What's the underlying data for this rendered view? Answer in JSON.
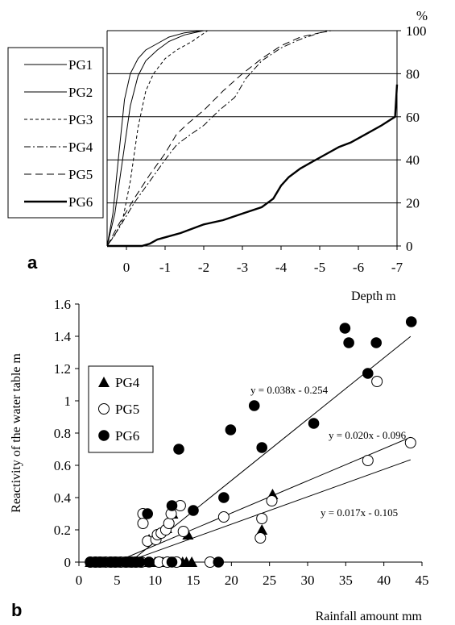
{
  "chart_data": [
    {
      "panel": "a",
      "type": "line",
      "title": "",
      "xlabel": "Depth m",
      "ylabel": "%",
      "xlim": [
        0.5,
        -7
      ],
      "ylim": [
        0,
        100
      ],
      "x_ticks": [
        "0",
        "-1",
        "-2",
        "-3",
        "-4",
        "-5",
        "-6",
        "-7"
      ],
      "y_ticks": [
        "0",
        "20",
        "40",
        "60",
        "80",
        "100"
      ],
      "grid": "horizontal",
      "legend": "left",
      "series": [
        {
          "name": "PG1",
          "line": "solid-thin",
          "x": [
            0.5,
            0.35,
            0.2,
            0.05,
            -0.1,
            -0.3,
            -0.5,
            -0.8,
            -1.1,
            -1.5,
            -2,
            -3,
            -4,
            -5,
            -7
          ],
          "y": [
            0,
            15,
            42,
            68,
            80,
            87,
            91,
            94,
            97,
            99,
            100,
            100,
            100,
            100,
            100
          ]
        },
        {
          "name": "PG2",
          "line": "solid-thin",
          "x": [
            0.5,
            0.3,
            0.1,
            -0.1,
            -0.3,
            -0.5,
            -0.8,
            -1.1,
            -1.5,
            -2,
            -3,
            -4,
            -5,
            -7
          ],
          "y": [
            0,
            15,
            40,
            65,
            79,
            86,
            91,
            95,
            98,
            100,
            100,
            100,
            100,
            100
          ]
        },
        {
          "name": "PG3",
          "line": "dashed-short",
          "x": [
            0.5,
            0.3,
            0.1,
            -0.1,
            -0.3,
            -0.5,
            -0.7,
            -1,
            -1.3,
            -1.7,
            -2.1,
            -3,
            -4,
            -5,
            -7
          ],
          "y": [
            0,
            5,
            12,
            30,
            55,
            72,
            80,
            87,
            91,
            95,
            100,
            100,
            100,
            100,
            100
          ]
        },
        {
          "name": "PG4",
          "line": "dash-dot",
          "x": [
            0.5,
            0.2,
            -0.2,
            -0.6,
            -1,
            -1.3,
            -1.6,
            -2,
            -2.4,
            -2.8,
            -3.1,
            -3.5,
            -4,
            -4.5,
            -5,
            -5.3,
            -7
          ],
          "y": [
            0,
            8,
            20,
            30,
            40,
            47,
            51,
            56,
            63,
            69,
            78,
            86,
            92,
            96,
            99,
            100,
            100
          ]
        },
        {
          "name": "PG5",
          "line": "dashed-long",
          "x": [
            0.5,
            0.2,
            -0.2,
            -0.6,
            -1,
            -1.3,
            -1.6,
            -2,
            -2.5,
            -3,
            -3.5,
            -4,
            -4.5,
            -5,
            -5.2,
            -7
          ],
          "y": [
            0,
            10,
            22,
            33,
            43,
            52,
            57,
            63,
            72,
            80,
            87,
            93,
            97,
            99,
            100,
            100
          ]
        },
        {
          "name": "PG6",
          "line": "solid-thick",
          "x": [
            0.5,
            -0.2,
            -0.4,
            -0.6,
            -0.8,
            -1,
            -1.4,
            -2,
            -2.5,
            -3,
            -3.5,
            -3.8,
            -4,
            -4.2,
            -4.5,
            -5,
            -5.5,
            -5.8,
            -6.2,
            -6.6,
            -6.95,
            -7
          ],
          "y": [
            0,
            0,
            0,
            1,
            3,
            4,
            6,
            10,
            12,
            15,
            18,
            22,
            28,
            32,
            36,
            41,
            46,
            48,
            52,
            56,
            60,
            75
          ]
        }
      ]
    },
    {
      "panel": "b",
      "type": "scatter",
      "title": "",
      "xlabel": "Rainfall amount mm",
      "ylabel": "Reactivity of the water table  m",
      "xlim": [
        0,
        45
      ],
      "ylim": [
        0,
        1.6
      ],
      "x_ticks": [
        "0",
        "5",
        "10",
        "15",
        "20",
        "25",
        "30",
        "35",
        "40",
        "45"
      ],
      "y_ticks": [
        "0",
        "0.2",
        "0.4",
        "0.6",
        "0.8",
        "1",
        "1.2",
        "1.4",
        "1.6"
      ],
      "grid": false,
      "legend": "top-left",
      "series": [
        {
          "name": "PG4",
          "marker": "triangle",
          "points": [
            [
              1.5,
              0
            ],
            [
              2,
              0
            ],
            [
              2.6,
              0
            ],
            [
              3,
              0
            ],
            [
              3.4,
              0
            ],
            [
              4,
              0
            ],
            [
              4.5,
              0
            ],
            [
              5,
              0
            ],
            [
              5.4,
              0
            ],
            [
              5.9,
              0
            ],
            [
              6.2,
              0
            ],
            [
              6.8,
              0
            ],
            [
              7.2,
              0
            ],
            [
              7.8,
              0
            ],
            [
              8.3,
              0
            ],
            [
              9,
              0
            ],
            [
              9.4,
              0
            ],
            [
              10,
              0
            ],
            [
              10.5,
              0
            ],
            [
              11,
              0
            ],
            [
              11.5,
              0
            ],
            [
              12,
              0
            ],
            [
              12.4,
              0
            ],
            [
              13,
              0
            ],
            [
              13.6,
              0
            ],
            [
              14.1,
              0
            ],
            [
              14.8,
              0
            ],
            [
              9.2,
              0.14
            ],
            [
              11.5,
              0.21
            ],
            [
              12.3,
              0.3
            ],
            [
              14.3,
              0.17
            ],
            [
              24,
              0.2
            ],
            [
              25.4,
              0.42
            ]
          ]
        },
        {
          "name": "PG5",
          "marker": "circle-open",
          "points": [
            [
              1.5,
              0
            ],
            [
              2.2,
              0
            ],
            [
              2.8,
              0
            ],
            [
              3.5,
              0
            ],
            [
              4.2,
              0
            ],
            [
              4.8,
              0
            ],
            [
              5.5,
              0
            ],
            [
              6.2,
              0
            ],
            [
              6.9,
              0
            ],
            [
              7.5,
              0
            ],
            [
              8.2,
              0
            ],
            [
              10.5,
              0
            ],
            [
              11.6,
              0
            ],
            [
              12.8,
              0
            ],
            [
              17.2,
              0
            ],
            [
              8.4,
              0.3
            ],
            [
              8.4,
              0.24
            ],
            [
              9,
              0.13
            ],
            [
              10.1,
              0.14
            ],
            [
              10.3,
              0.17
            ],
            [
              10.8,
              0.18
            ],
            [
              11.4,
              0.2
            ],
            [
              11.8,
              0.24
            ],
            [
              12.1,
              0.3
            ],
            [
              13.3,
              0.35
            ],
            [
              13.7,
              0.19
            ],
            [
              19,
              0.28
            ],
            [
              23.8,
              0.15
            ],
            [
              24,
              0.27
            ],
            [
              25.3,
              0.38
            ],
            [
              37.9,
              0.63
            ],
            [
              39.1,
              1.12
            ],
            [
              43.5,
              0.74
            ]
          ]
        },
        {
          "name": "PG6",
          "marker": "circle-filled",
          "points": [
            [
              1.5,
              0
            ],
            [
              2,
              0
            ],
            [
              2.6,
              0
            ],
            [
              3.2,
              0
            ],
            [
              4,
              0
            ],
            [
              4.6,
              0
            ],
            [
              5.2,
              0
            ],
            [
              6,
              0
            ],
            [
              6.6,
              0
            ],
            [
              7.3,
              0
            ],
            [
              8,
              0
            ],
            [
              9.2,
              0
            ],
            [
              12.2,
              0
            ],
            [
              18.3,
              0
            ],
            [
              9,
              0.3
            ],
            [
              12.2,
              0.35
            ],
            [
              13.1,
              0.7
            ],
            [
              15,
              0.32
            ],
            [
              19,
              0.4
            ],
            [
              19.9,
              0.82
            ],
            [
              23,
              0.97
            ],
            [
              24,
              0.71
            ],
            [
              30.8,
              0.86
            ],
            [
              34.9,
              1.45
            ],
            [
              35.4,
              1.36
            ],
            [
              37.9,
              1.17
            ],
            [
              39,
              1.36
            ],
            [
              43.6,
              1.49
            ]
          ]
        }
      ],
      "trendlines": [
        {
          "equation": "y = 0.038x - 0.254",
          "slope": 0.038,
          "intercept": -0.254,
          "x_range": [
            6.7,
            43.5
          ]
        },
        {
          "equation": "y = 0.020x - 0.096",
          "slope": 0.02,
          "intercept": -0.096,
          "x_range": [
            4.8,
            43.5
          ]
        },
        {
          "equation": "y = 0.017x - 0.105",
          "slope": 0.017,
          "intercept": -0.105,
          "x_range": [
            6.2,
            43.5
          ]
        }
      ]
    }
  ],
  "labels": {
    "panel_a": "a",
    "panel_b": "b"
  }
}
